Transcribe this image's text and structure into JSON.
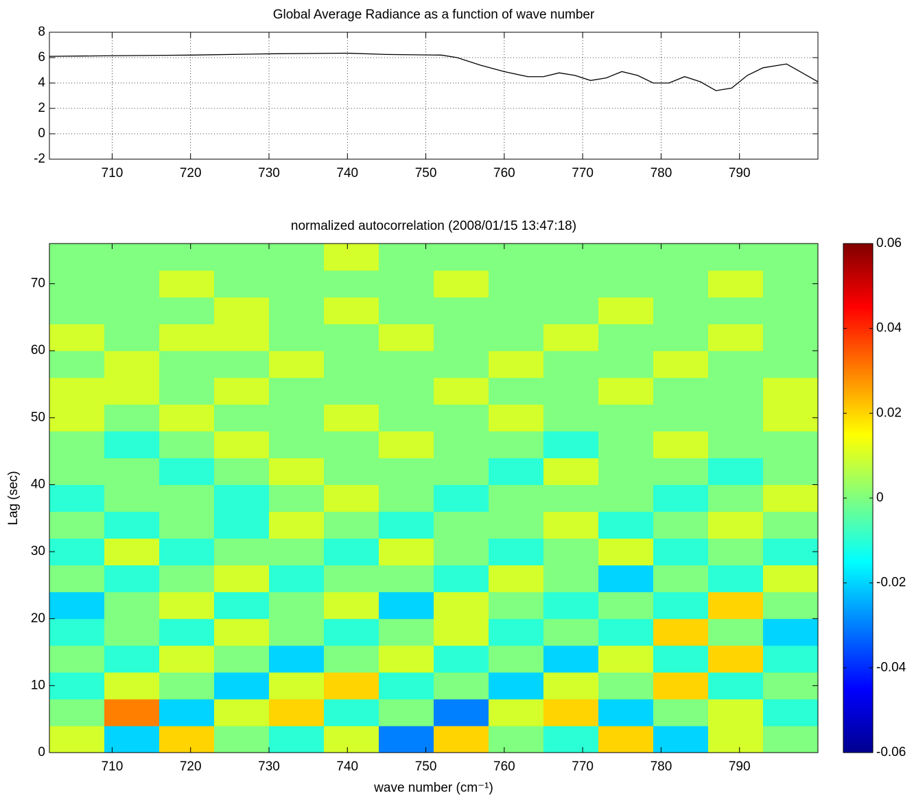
{
  "chart_data": [
    {
      "type": "line",
      "title": "Global Average Radiance as a function of wave number",
      "x": [
        702,
        710,
        720,
        730,
        740,
        745,
        752,
        754,
        757,
        760,
        763,
        765,
        767,
        769,
        771,
        773,
        775,
        777,
        779,
        781,
        783,
        785,
        787,
        789,
        791,
        793,
        796,
        798,
        800
      ],
      "values": [
        6.1,
        6.15,
        6.2,
        6.3,
        6.35,
        6.25,
        6.2,
        6.0,
        5.4,
        4.9,
        4.5,
        4.5,
        4.8,
        4.6,
        4.2,
        4.4,
        4.9,
        4.6,
        4.0,
        4.0,
        4.5,
        4.1,
        3.4,
        3.6,
        4.6,
        5.2,
        5.5,
        4.8,
        4.1
      ],
      "color": "#000000",
      "xlim": [
        702,
        800
      ],
      "ylim": [
        -2,
        8
      ],
      "xticks": [
        710,
        720,
        730,
        740,
        750,
        760,
        770,
        780,
        790
      ],
      "yticks": [
        -2,
        0,
        2,
        4,
        6,
        8
      ],
      "grid": true
    },
    {
      "type": "heatmap",
      "title": "normalized autocorrelation (2008/01/15 13:47:18)",
      "xlabel": "wave number (cm⁻¹)",
      "ylabel": "Lag (sec)",
      "x": [
        705.5,
        712.5,
        719.5,
        726.5,
        733.5,
        740.5,
        747.5,
        754.5,
        761.5,
        768.5,
        775.5,
        782.5,
        789.5,
        796.5
      ],
      "y": [
        2,
        6,
        10,
        14,
        18,
        22,
        26,
        30,
        34,
        38,
        42,
        46,
        50,
        54,
        58,
        62,
        66,
        70,
        74
      ],
      "values": [
        [
          0.01,
          -0.02,
          0.02,
          0,
          -0.01,
          0.01,
          -0.03,
          0.02,
          0,
          -0.01,
          0.02,
          -0.02,
          0.01,
          0
        ],
        [
          0,
          0.03,
          -0.02,
          0.01,
          0.02,
          -0.01,
          0,
          -0.03,
          0.01,
          0.02,
          -0.02,
          0,
          0.01,
          -0.01
        ],
        [
          -0.01,
          0.01,
          0,
          -0.02,
          0.01,
          0.02,
          -0.01,
          0,
          -0.02,
          0.01,
          0,
          0.02,
          -0.01,
          0
        ],
        [
          0,
          -0.01,
          0.01,
          0,
          -0.02,
          0,
          0.01,
          -0.01,
          0,
          -0.02,
          0.01,
          -0.01,
          0.02,
          -0.01
        ],
        [
          -0.01,
          0,
          -0.01,
          0.01,
          0,
          -0.01,
          0,
          0.01,
          -0.01,
          0,
          -0.01,
          0.02,
          0,
          -0.02
        ],
        [
          -0.02,
          0,
          0.01,
          -0.01,
          0,
          0.01,
          -0.02,
          0.01,
          0,
          -0.01,
          0,
          -0.01,
          0.02,
          0
        ],
        [
          0,
          -0.01,
          0,
          0.01,
          -0.01,
          0,
          0,
          -0.01,
          0.01,
          0,
          -0.02,
          0,
          -0.01,
          0.01
        ],
        [
          -0.01,
          0.01,
          -0.01,
          0,
          0,
          -0.01,
          0.01,
          0,
          -0.01,
          0,
          0.01,
          -0.01,
          0,
          -0.01
        ],
        [
          0,
          -0.01,
          0,
          -0.01,
          0.01,
          0,
          -0.01,
          0,
          0,
          0.01,
          -0.01,
          0,
          0.01,
          0
        ],
        [
          -0.01,
          0,
          0,
          -0.01,
          0,
          0.01,
          0,
          -0.01,
          0,
          0,
          0,
          -0.01,
          0,
          0.01
        ],
        [
          0,
          0,
          -0.01,
          0,
          0.01,
          0,
          0,
          0,
          -0.01,
          0.01,
          0,
          0,
          -0.01,
          0
        ],
        [
          0,
          -0.01,
          0,
          0.01,
          0,
          0,
          0.01,
          0,
          0,
          -0.01,
          0,
          0.01,
          0,
          0
        ],
        [
          0.01,
          0,
          0.01,
          0,
          0,
          0.01,
          0,
          0,
          0.01,
          0,
          0,
          0,
          0,
          0.01
        ],
        [
          0.01,
          0.01,
          0,
          0.01,
          0,
          0,
          0,
          0.01,
          0,
          0,
          0.01,
          0,
          0,
          0.01
        ],
        [
          0,
          0.01,
          0,
          0,
          0.01,
          0,
          0,
          0,
          0.01,
          0,
          0,
          0.01,
          0,
          0
        ],
        [
          0.01,
          0,
          0.01,
          0.01,
          0,
          0,
          0.01,
          0,
          0,
          0.01,
          0,
          0,
          0.01,
          0
        ],
        [
          0,
          0,
          0,
          0.01,
          0,
          0.01,
          0,
          0,
          0,
          0,
          0.01,
          0,
          0,
          0
        ],
        [
          0,
          0,
          0.01,
          0,
          0,
          0,
          0,
          0.01,
          0,
          0,
          0,
          0,
          0.01,
          0
        ],
        [
          0,
          0,
          0,
          0,
          0,
          0.01,
          0,
          0,
          0,
          0,
          0,
          0,
          0,
          0
        ]
      ],
      "xlim": [
        702,
        800
      ],
      "ylim": [
        0,
        76
      ],
      "xticks": [
        710,
        720,
        730,
        740,
        750,
        760,
        770,
        780,
        790
      ],
      "yticks": [
        0,
        10,
        20,
        30,
        40,
        50,
        60,
        70
      ],
      "clim": [
        -0.06,
        0.06
      ],
      "cticks": [
        -0.06,
        -0.04,
        -0.02,
        0,
        0.02,
        0.04,
        0.06
      ],
      "colormap": "jet"
    }
  ]
}
